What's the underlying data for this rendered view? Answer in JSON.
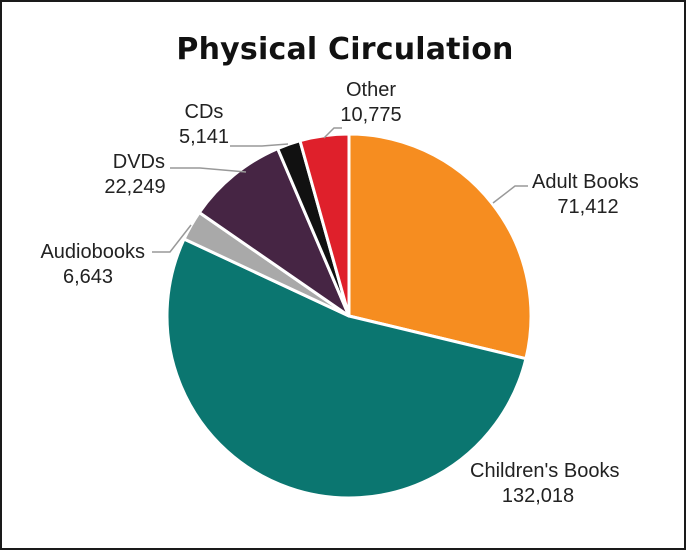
{
  "chart_data": {
    "type": "pie",
    "title": "Physical Circulation",
    "slices": [
      {
        "label": "Adult Books",
        "value": 71412,
        "display": "71,412",
        "color": "#f68d20"
      },
      {
        "label": "Children's Books",
        "value": 132018,
        "display": "132,018",
        "color": "#0b7670"
      },
      {
        "label": "Audiobooks",
        "value": 6643,
        "display": "6,643",
        "color": "#a9a9a9"
      },
      {
        "label": "DVDs",
        "value": 22249,
        "display": "22,249",
        "color": "#462544"
      },
      {
        "label": "CDs",
        "value": 5141,
        "display": "5,141",
        "color": "#111111"
      },
      {
        "label": "Other",
        "value": 10775,
        "display": "10,775",
        "color": "#df202b"
      }
    ],
    "start_angle": "12 o'clock",
    "direction": "clockwise",
    "legend": "none (labels with leader lines)"
  }
}
